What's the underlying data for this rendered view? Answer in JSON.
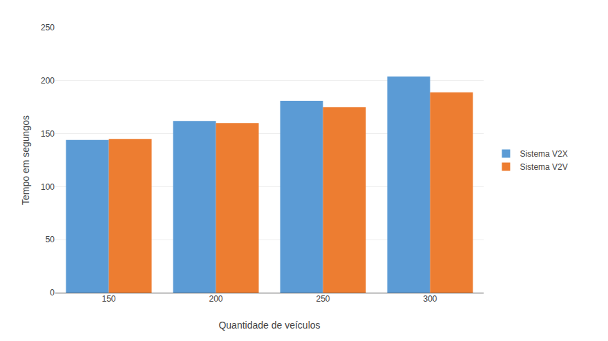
{
  "chart_data": {
    "type": "bar",
    "xlabel": "Quantidade de veículos",
    "ylabel": "Tempo em segungos",
    "categories": [
      150,
      200,
      250,
      300
    ],
    "series": [
      {
        "name": "Sistema V2X",
        "color": "#5B9BD5",
        "values": [
          144,
          162,
          181,
          204
        ]
      },
      {
        "name": "Sistema V2V",
        "color": "#ED7D31",
        "values": [
          145,
          160,
          175,
          189
        ]
      }
    ],
    "ylim": [
      0,
      250
    ],
    "yticks": [
      0,
      50,
      100,
      150,
      200,
      250
    ],
    "grid": true,
    "legend": "right"
  }
}
